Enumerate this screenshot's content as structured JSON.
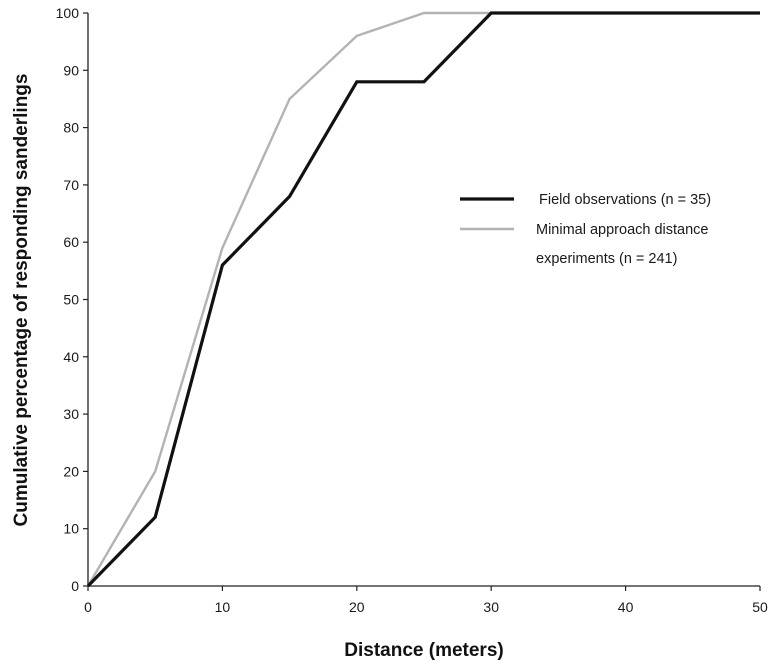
{
  "chart_data": {
    "type": "line",
    "title": "",
    "xlabel": "Distance (meters)",
    "ylabel": "Cumulative percentage of responding sanderlings",
    "xlim": [
      0,
      50
    ],
    "ylim": [
      0,
      100
    ],
    "x_ticks": [
      0,
      10,
      20,
      30,
      40,
      50
    ],
    "y_ticks": [
      0,
      10,
      20,
      30,
      40,
      50,
      60,
      70,
      80,
      90,
      100
    ],
    "grid": false,
    "legend_position": "right",
    "series": [
      {
        "name": "Field observations (n = 35)",
        "color": "#111111",
        "x": [
          0,
          5,
          10,
          15,
          20,
          25,
          30,
          50
        ],
        "y": [
          0,
          12,
          56,
          68,
          88,
          88,
          100,
          100
        ]
      },
      {
        "name": "Minimal approach distance experiments (n = 241)",
        "legend_lines": [
          "Minimal approach distance",
          "experiments (n = 241)"
        ],
        "color": "#b3b3b3",
        "x": [
          0,
          5,
          10,
          15,
          20,
          25,
          30,
          50
        ],
        "y": [
          0,
          20,
          59,
          85,
          96,
          100,
          100,
          100
        ]
      }
    ]
  }
}
